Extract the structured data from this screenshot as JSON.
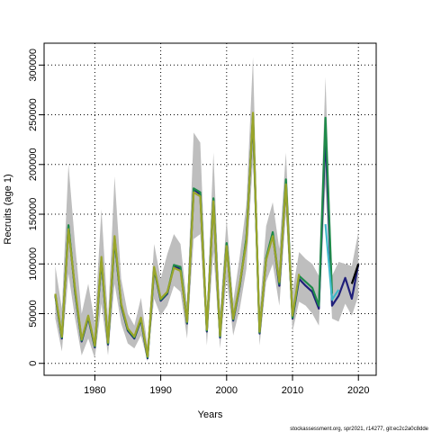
{
  "chart_data": {
    "type": "line",
    "title": "",
    "xlabel": "Years",
    "ylabel": "Recruits (age 1)",
    "xlim": [
      1972.3,
      2022.7
    ],
    "ylim": [
      -12000,
      322000
    ],
    "xticks": [
      1980,
      1990,
      2000,
      2010,
      2020
    ],
    "xtick_labels": [
      "1980",
      "1990",
      "2000",
      "2010",
      "2020"
    ],
    "yticks": [
      0,
      50000,
      100000,
      150000,
      200000,
      250000,
      300000
    ],
    "ytick_labels": [
      "0",
      "50000",
      "100000",
      "150000",
      "200000",
      "250000",
      "300000"
    ],
    "grid": true,
    "grid_style": "dotted",
    "x": [
      1974,
      1975,
      1976,
      1977,
      1978,
      1979,
      1980,
      1981,
      1982,
      1983,
      1984,
      1985,
      1986,
      1987,
      1988,
      1989,
      1990,
      1991,
      1992,
      1993,
      1994,
      1995,
      1996,
      1997,
      1998,
      1999,
      2000,
      2001,
      2002,
      2003,
      2004,
      2005,
      2006,
      2007,
      2008,
      2009,
      2010,
      2011,
      2012,
      2013,
      2014,
      2015,
      2016,
      2017,
      2018,
      2019,
      2020
    ],
    "band": {
      "upper": [
        98000,
        55000,
        200000,
        120000,
        50000,
        80000,
        40000,
        155000,
        45000,
        188000,
        85000,
        50000,
        38000,
        66000,
        18000,
        120000,
        85000,
        110000,
        130000,
        120000,
        60000,
        232000,
        222000,
        52000,
        212000,
        52000,
        145000,
        62000,
        108000,
        160000,
        308000,
        52000,
        138000,
        162000,
        115000,
        212000,
        72000,
        112000,
        105000,
        100000,
        88000,
        288000,
        88000,
        102000,
        100000,
        98000,
        132000
      ],
      "lower": [
        45000,
        12000,
        90000,
        45000,
        8000,
        25000,
        5000,
        60000,
        8000,
        80000,
        40000,
        20000,
        15000,
        28000,
        2000,
        65000,
        48000,
        58000,
        78000,
        72000,
        25000,
        125000,
        130000,
        18000,
        112000,
        15000,
        85000,
        28000,
        55000,
        95000,
        205000,
        18000,
        82000,
        100000,
        58000,
        150000,
        32000,
        62000,
        58000,
        50000,
        38000,
        180000,
        45000,
        42000,
        60000,
        48000,
        68000
      ],
      "color": "#bebebe"
    },
    "series": [
      {
        "color": "#1f1f7a",
        "values": [
          68000,
          25000,
          138000,
          72000,
          22000,
          46000,
          16000,
          104000,
          19000,
          125000,
          58000,
          33000,
          25000,
          44000,
          5000,
          95000,
          63000,
          70000,
          98000,
          95000,
          40000,
          175000,
          170000,
          32000,
          165000,
          26000,
          120000,
          43000,
          78000,
          125000,
          248000,
          30000,
          105000,
          130000,
          78000,
          182000,
          45000,
          85000,
          78000,
          72000,
          55000,
          230000,
          58000,
          68000,
          86000,
          65000,
          100000
        ]
      },
      {
        "color": "#000000",
        "values": [
          null,
          null,
          null,
          null,
          null,
          null,
          null,
          null,
          null,
          null,
          null,
          null,
          null,
          null,
          null,
          null,
          null,
          null,
          null,
          null,
          null,
          null,
          null,
          null,
          null,
          null,
          null,
          null,
          null,
          null,
          null,
          null,
          null,
          null,
          null,
          null,
          null,
          null,
          null,
          null,
          null,
          null,
          null,
          null,
          null,
          80000,
          100000
        ]
      },
      {
        "color": "#1e8a4a",
        "values": [
          69000,
          26000,
          139000,
          73000,
          23000,
          47000,
          17000,
          105000,
          20000,
          126000,
          59000,
          34000,
          26000,
          45000,
          6000,
          96000,
          64000,
          71000,
          99000,
          97000,
          41000,
          176000,
          172000,
          33000,
          166000,
          27000,
          121000,
          44000,
          79000,
          126000,
          250000,
          31000,
          106000,
          132000,
          80000,
          185000,
          46000,
          88000,
          82000,
          76000,
          58000,
          247000,
          70000,
          null,
          null,
          null,
          null
        ]
      },
      {
        "color": "#3fb8c8",
        "values": [
          null,
          null,
          null,
          null,
          null,
          null,
          null,
          null,
          null,
          null,
          null,
          null,
          null,
          null,
          null,
          null,
          null,
          null,
          null,
          null,
          null,
          null,
          null,
          null,
          null,
          null,
          null,
          null,
          null,
          null,
          null,
          null,
          null,
          null,
          null,
          null,
          null,
          null,
          null,
          null,
          null,
          140000,
          64000,
          74000,
          null,
          null,
          null
        ]
      },
      {
        "color": "#9aa52a",
        "values": [
          70000,
          27000,
          135000,
          75000,
          24000,
          48000,
          18000,
          107000,
          21000,
          128000,
          60000,
          35000,
          27000,
          46000,
          7000,
          97000,
          65000,
          72000,
          96000,
          93000,
          42000,
          172000,
          168000,
          34000,
          163000,
          28000,
          118000,
          45000,
          80000,
          122000,
          252000,
          32000,
          104000,
          128000,
          82000,
          180000,
          48000,
          90000,
          null,
          null,
          null,
          null,
          null,
          null,
          null,
          null,
          null
        ]
      }
    ]
  },
  "footer": {
    "credit": "stockassessment.org, spr2021, r14277, git:ec2c2a0c8dde"
  }
}
